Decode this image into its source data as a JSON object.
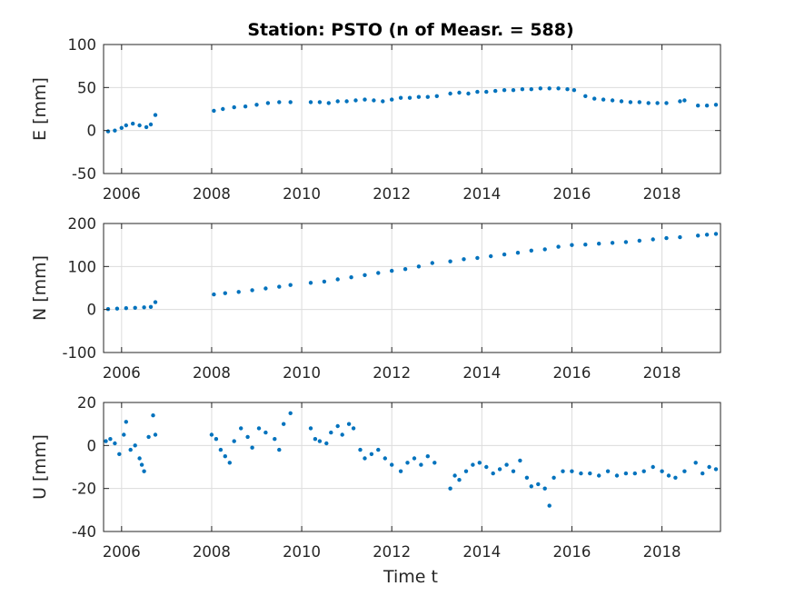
{
  "title": "Station: PSTO (n of Measr. = 588)",
  "colors": {
    "marker": "#0072BD",
    "grid": "#dcdcdc",
    "axis": "#262626"
  },
  "chart_data": [
    {
      "type": "scatter",
      "ylabel": "E [mm]",
      "ylim": [
        -50,
        100
      ],
      "xlim": [
        2005.6,
        2019.3
      ],
      "yticks": [
        -50,
        0,
        50,
        100
      ],
      "xticks": [
        2006,
        2008,
        2010,
        2012,
        2014,
        2016,
        2018
      ],
      "grid": true,
      "points": [
        [
          2005.7,
          -1
        ],
        [
          2005.85,
          0
        ],
        [
          2006.0,
          3
        ],
        [
          2006.1,
          6
        ],
        [
          2006.25,
          8
        ],
        [
          2006.4,
          6
        ],
        [
          2006.55,
          4
        ],
        [
          2006.65,
          7
        ],
        [
          2006.75,
          18
        ],
        [
          2008.05,
          23
        ],
        [
          2008.25,
          25
        ],
        [
          2008.5,
          27
        ],
        [
          2008.75,
          28
        ],
        [
          2009.0,
          30
        ],
        [
          2009.25,
          32
        ],
        [
          2009.5,
          33
        ],
        [
          2009.75,
          33
        ],
        [
          2010.2,
          33
        ],
        [
          2010.4,
          33
        ],
        [
          2010.6,
          32
        ],
        [
          2010.8,
          34
        ],
        [
          2011.0,
          34
        ],
        [
          2011.2,
          35
        ],
        [
          2011.4,
          36
        ],
        [
          2011.6,
          35
        ],
        [
          2011.8,
          34
        ],
        [
          2012.0,
          36
        ],
        [
          2012.2,
          38
        ],
        [
          2012.4,
          38
        ],
        [
          2012.6,
          39
        ],
        [
          2012.8,
          39
        ],
        [
          2013.0,
          40
        ],
        [
          2013.3,
          43
        ],
        [
          2013.5,
          44
        ],
        [
          2013.7,
          43
        ],
        [
          2013.9,
          45
        ],
        [
          2014.1,
          45
        ],
        [
          2014.3,
          46
        ],
        [
          2014.5,
          47
        ],
        [
          2014.7,
          47
        ],
        [
          2014.9,
          48
        ],
        [
          2015.1,
          48
        ],
        [
          2015.3,
          49
        ],
        [
          2015.5,
          49
        ],
        [
          2015.7,
          49
        ],
        [
          2015.9,
          48
        ],
        [
          2016.05,
          47
        ],
        [
          2016.3,
          40
        ],
        [
          2016.5,
          37
        ],
        [
          2016.7,
          36
        ],
        [
          2016.9,
          35
        ],
        [
          2017.1,
          34
        ],
        [
          2017.3,
          33
        ],
        [
          2017.5,
          33
        ],
        [
          2017.7,
          32
        ],
        [
          2017.9,
          32
        ],
        [
          2018.1,
          32
        ],
        [
          2018.4,
          34
        ],
        [
          2018.5,
          35
        ],
        [
          2018.8,
          29
        ],
        [
          2019.0,
          29
        ],
        [
          2019.2,
          30
        ]
      ]
    },
    {
      "type": "scatter",
      "ylabel": "N [mm]",
      "ylim": [
        -100,
        200
      ],
      "xlim": [
        2005.6,
        2019.3
      ],
      "yticks": [
        -100,
        0,
        100,
        200
      ],
      "xticks": [
        2006,
        2008,
        2010,
        2012,
        2014,
        2016,
        2018
      ],
      "grid": true,
      "points": [
        [
          2005.7,
          1
        ],
        [
          2005.9,
          2
        ],
        [
          2006.1,
          3
        ],
        [
          2006.3,
          4
        ],
        [
          2006.5,
          5
        ],
        [
          2006.65,
          6
        ],
        [
          2006.75,
          17
        ],
        [
          2008.05,
          35
        ],
        [
          2008.3,
          38
        ],
        [
          2008.6,
          41
        ],
        [
          2008.9,
          45
        ],
        [
          2009.2,
          49
        ],
        [
          2009.5,
          53
        ],
        [
          2009.75,
          57
        ],
        [
          2010.2,
          62
        ],
        [
          2010.5,
          65
        ],
        [
          2010.8,
          70
        ],
        [
          2011.1,
          75
        ],
        [
          2011.4,
          80
        ],
        [
          2011.7,
          85
        ],
        [
          2012.0,
          90
        ],
        [
          2012.3,
          94
        ],
        [
          2012.6,
          100
        ],
        [
          2012.9,
          108
        ],
        [
          2013.3,
          112
        ],
        [
          2013.6,
          117
        ],
        [
          2013.9,
          120
        ],
        [
          2014.2,
          124
        ],
        [
          2014.5,
          128
        ],
        [
          2014.8,
          132
        ],
        [
          2015.1,
          137
        ],
        [
          2015.4,
          140
        ],
        [
          2015.7,
          146
        ],
        [
          2016.0,
          150
        ],
        [
          2016.3,
          151
        ],
        [
          2016.6,
          153
        ],
        [
          2016.9,
          155
        ],
        [
          2017.2,
          157
        ],
        [
          2017.5,
          160
        ],
        [
          2017.8,
          163
        ],
        [
          2018.1,
          166
        ],
        [
          2018.4,
          168
        ],
        [
          2018.8,
          172
        ],
        [
          2019.0,
          174
        ],
        [
          2019.2,
          176
        ]
      ]
    },
    {
      "type": "scatter",
      "ylabel": "U [mm]",
      "xlabel": "Time t",
      "ylim": [
        -40,
        20
      ],
      "xlim": [
        2005.6,
        2019.3
      ],
      "yticks": [
        -40,
        -20,
        0,
        20
      ],
      "xticks": [
        2006,
        2008,
        2010,
        2012,
        2014,
        2016,
        2018
      ],
      "grid": true,
      "points": [
        [
          2005.65,
          2
        ],
        [
          2005.75,
          3
        ],
        [
          2005.85,
          1
        ],
        [
          2005.95,
          -4
        ],
        [
          2006.05,
          5
        ],
        [
          2006.1,
          11
        ],
        [
          2006.2,
          -2
        ],
        [
          2006.3,
          0
        ],
        [
          2006.4,
          -6
        ],
        [
          2006.45,
          -9
        ],
        [
          2006.5,
          -12
        ],
        [
          2006.6,
          4
        ],
        [
          2006.7,
          14
        ],
        [
          2006.75,
          5
        ],
        [
          2008.0,
          5
        ],
        [
          2008.1,
          3
        ],
        [
          2008.2,
          -2
        ],
        [
          2008.3,
          -5
        ],
        [
          2008.4,
          -8
        ],
        [
          2008.5,
          2
        ],
        [
          2008.65,
          8
        ],
        [
          2008.8,
          4
        ],
        [
          2008.9,
          -1
        ],
        [
          2009.05,
          8
        ],
        [
          2009.2,
          6
        ],
        [
          2009.4,
          3
        ],
        [
          2009.5,
          -2
        ],
        [
          2009.6,
          10
        ],
        [
          2009.75,
          15
        ],
        [
          2010.2,
          8
        ],
        [
          2010.3,
          3
        ],
        [
          2010.4,
          2
        ],
        [
          2010.55,
          1
        ],
        [
          2010.65,
          6
        ],
        [
          2010.8,
          9
        ],
        [
          2010.9,
          5
        ],
        [
          2011.05,
          10
        ],
        [
          2011.15,
          8
        ],
        [
          2011.3,
          -2
        ],
        [
          2011.4,
          -6
        ],
        [
          2011.55,
          -4
        ],
        [
          2011.7,
          -2
        ],
        [
          2011.85,
          -6
        ],
        [
          2012.0,
          -9
        ],
        [
          2012.2,
          -12
        ],
        [
          2012.35,
          -8
        ],
        [
          2012.5,
          -6
        ],
        [
          2012.65,
          -9
        ],
        [
          2012.8,
          -5
        ],
        [
          2012.95,
          -8
        ],
        [
          2013.3,
          -20
        ],
        [
          2013.4,
          -14
        ],
        [
          2013.5,
          -16
        ],
        [
          2013.65,
          -12
        ],
        [
          2013.8,
          -9
        ],
        [
          2013.95,
          -8
        ],
        [
          2014.1,
          -10
        ],
        [
          2014.25,
          -13
        ],
        [
          2014.4,
          -11
        ],
        [
          2014.55,
          -9
        ],
        [
          2014.7,
          -12
        ],
        [
          2014.85,
          -7
        ],
        [
          2015.0,
          -15
        ],
        [
          2015.1,
          -19
        ],
        [
          2015.25,
          -18
        ],
        [
          2015.4,
          -20
        ],
        [
          2015.5,
          -28
        ],
        [
          2015.6,
          -15
        ],
        [
          2015.8,
          -12
        ],
        [
          2016.0,
          -12
        ],
        [
          2016.2,
          -13
        ],
        [
          2016.4,
          -13
        ],
        [
          2016.6,
          -14
        ],
        [
          2016.8,
          -12
        ],
        [
          2017.0,
          -14
        ],
        [
          2017.2,
          -13
        ],
        [
          2017.4,
          -13
        ],
        [
          2017.6,
          -12
        ],
        [
          2017.8,
          -10
        ],
        [
          2018.0,
          -12
        ],
        [
          2018.15,
          -14
        ],
        [
          2018.3,
          -15
        ],
        [
          2018.5,
          -12
        ],
        [
          2018.75,
          -8
        ],
        [
          2018.9,
          -13
        ],
        [
          2019.05,
          -10
        ],
        [
          2019.2,
          -11
        ]
      ]
    }
  ]
}
